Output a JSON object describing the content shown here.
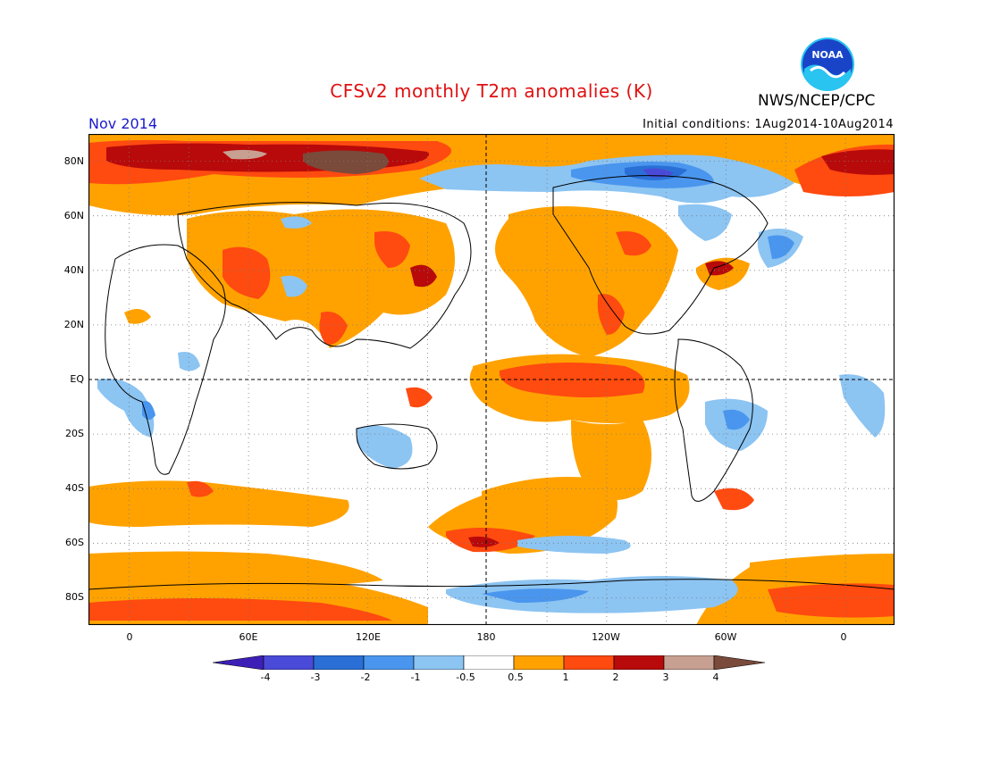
{
  "header": {
    "title": "CFSv2 monthly T2m anomalies (K)",
    "agency": "NWS/NCEP/CPC",
    "month": "Nov 2014",
    "initial_conditions": "Initial conditions: 1Aug2014-10Aug2014",
    "logo_text": "NOAA"
  },
  "axes": {
    "lat_labels": [
      "80N",
      "60N",
      "40N",
      "20N",
      "EQ",
      "20S",
      "40S",
      "60S",
      "80S"
    ],
    "lon_labels": [
      "0",
      "60E",
      "120E",
      "180",
      "120W",
      "60W",
      "0"
    ]
  },
  "legend": {
    "labels": [
      "-4",
      "-3",
      "-2",
      "-1",
      "-0.5",
      "0.5",
      "1",
      "2",
      "3",
      "4"
    ],
    "colors": [
      "#3d1fb8",
      "#4a4ad8",
      "#2a6fd6",
      "#4a96ee",
      "#8cc4f2",
      "#ffffff",
      "#ffa200",
      "#ff4a10",
      "#b80a0a",
      "#c8a092",
      "#7a4a3a"
    ]
  },
  "colors": {
    "title": "#e01010",
    "month": "#1a1acc",
    "logo_blue": "#1a44c8",
    "logo_cyan": "#29c4f0"
  }
}
